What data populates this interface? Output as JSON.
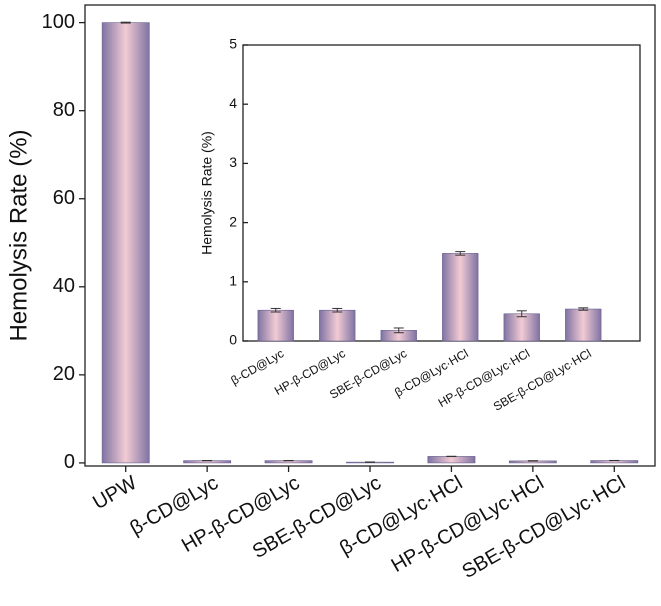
{
  "chart_data": [
    {
      "type": "bar",
      "ylabel": "Hemolysis Rate (%)",
      "categories": [
        "UPW",
        "β-CD@Lyc",
        "HP-β-CD@Lyc",
        "SBE-β-CD@Lyc",
        "β-CD@Lyc·HCl",
        "HP-β-CD@Lyc·HCl",
        "SBE-β-CD@Lyc·HCl"
      ],
      "values": [
        100,
        0.52,
        0.52,
        0.18,
        1.48,
        0.46,
        0.54
      ],
      "errors": [
        0.1,
        0.03,
        0.03,
        0.04,
        0.03,
        0.05,
        0.02
      ],
      "ylim": [
        -0.7,
        104
      ],
      "yticks": [
        0,
        20,
        40,
        60,
        80,
        100
      ],
      "color": "#f2cbd3",
      "edge_color": "#7f73a3"
    },
    {
      "type": "bar",
      "ylabel": "Hemolysis Rate (%)",
      "categories": [
        "β-CD@Lyc",
        "HP-β-CD@Lyc",
        "SBE-β-CD@Lyc",
        "β-CD@Lyc·HCl",
        "HP-β-CD@Lyc·HCl",
        "SBE-β-CD@Lyc·HCl"
      ],
      "values": [
        0.52,
        0.52,
        0.18,
        1.48,
        0.46,
        0.54
      ],
      "errors": [
        0.03,
        0.03,
        0.04,
        0.03,
        0.05,
        0.02
      ],
      "ylim": [
        0,
        5
      ],
      "yticks": [
        0,
        1,
        2,
        3,
        4,
        5
      ],
      "color": "#f2cbd3",
      "edge_color": "#7f73a3"
    }
  ]
}
